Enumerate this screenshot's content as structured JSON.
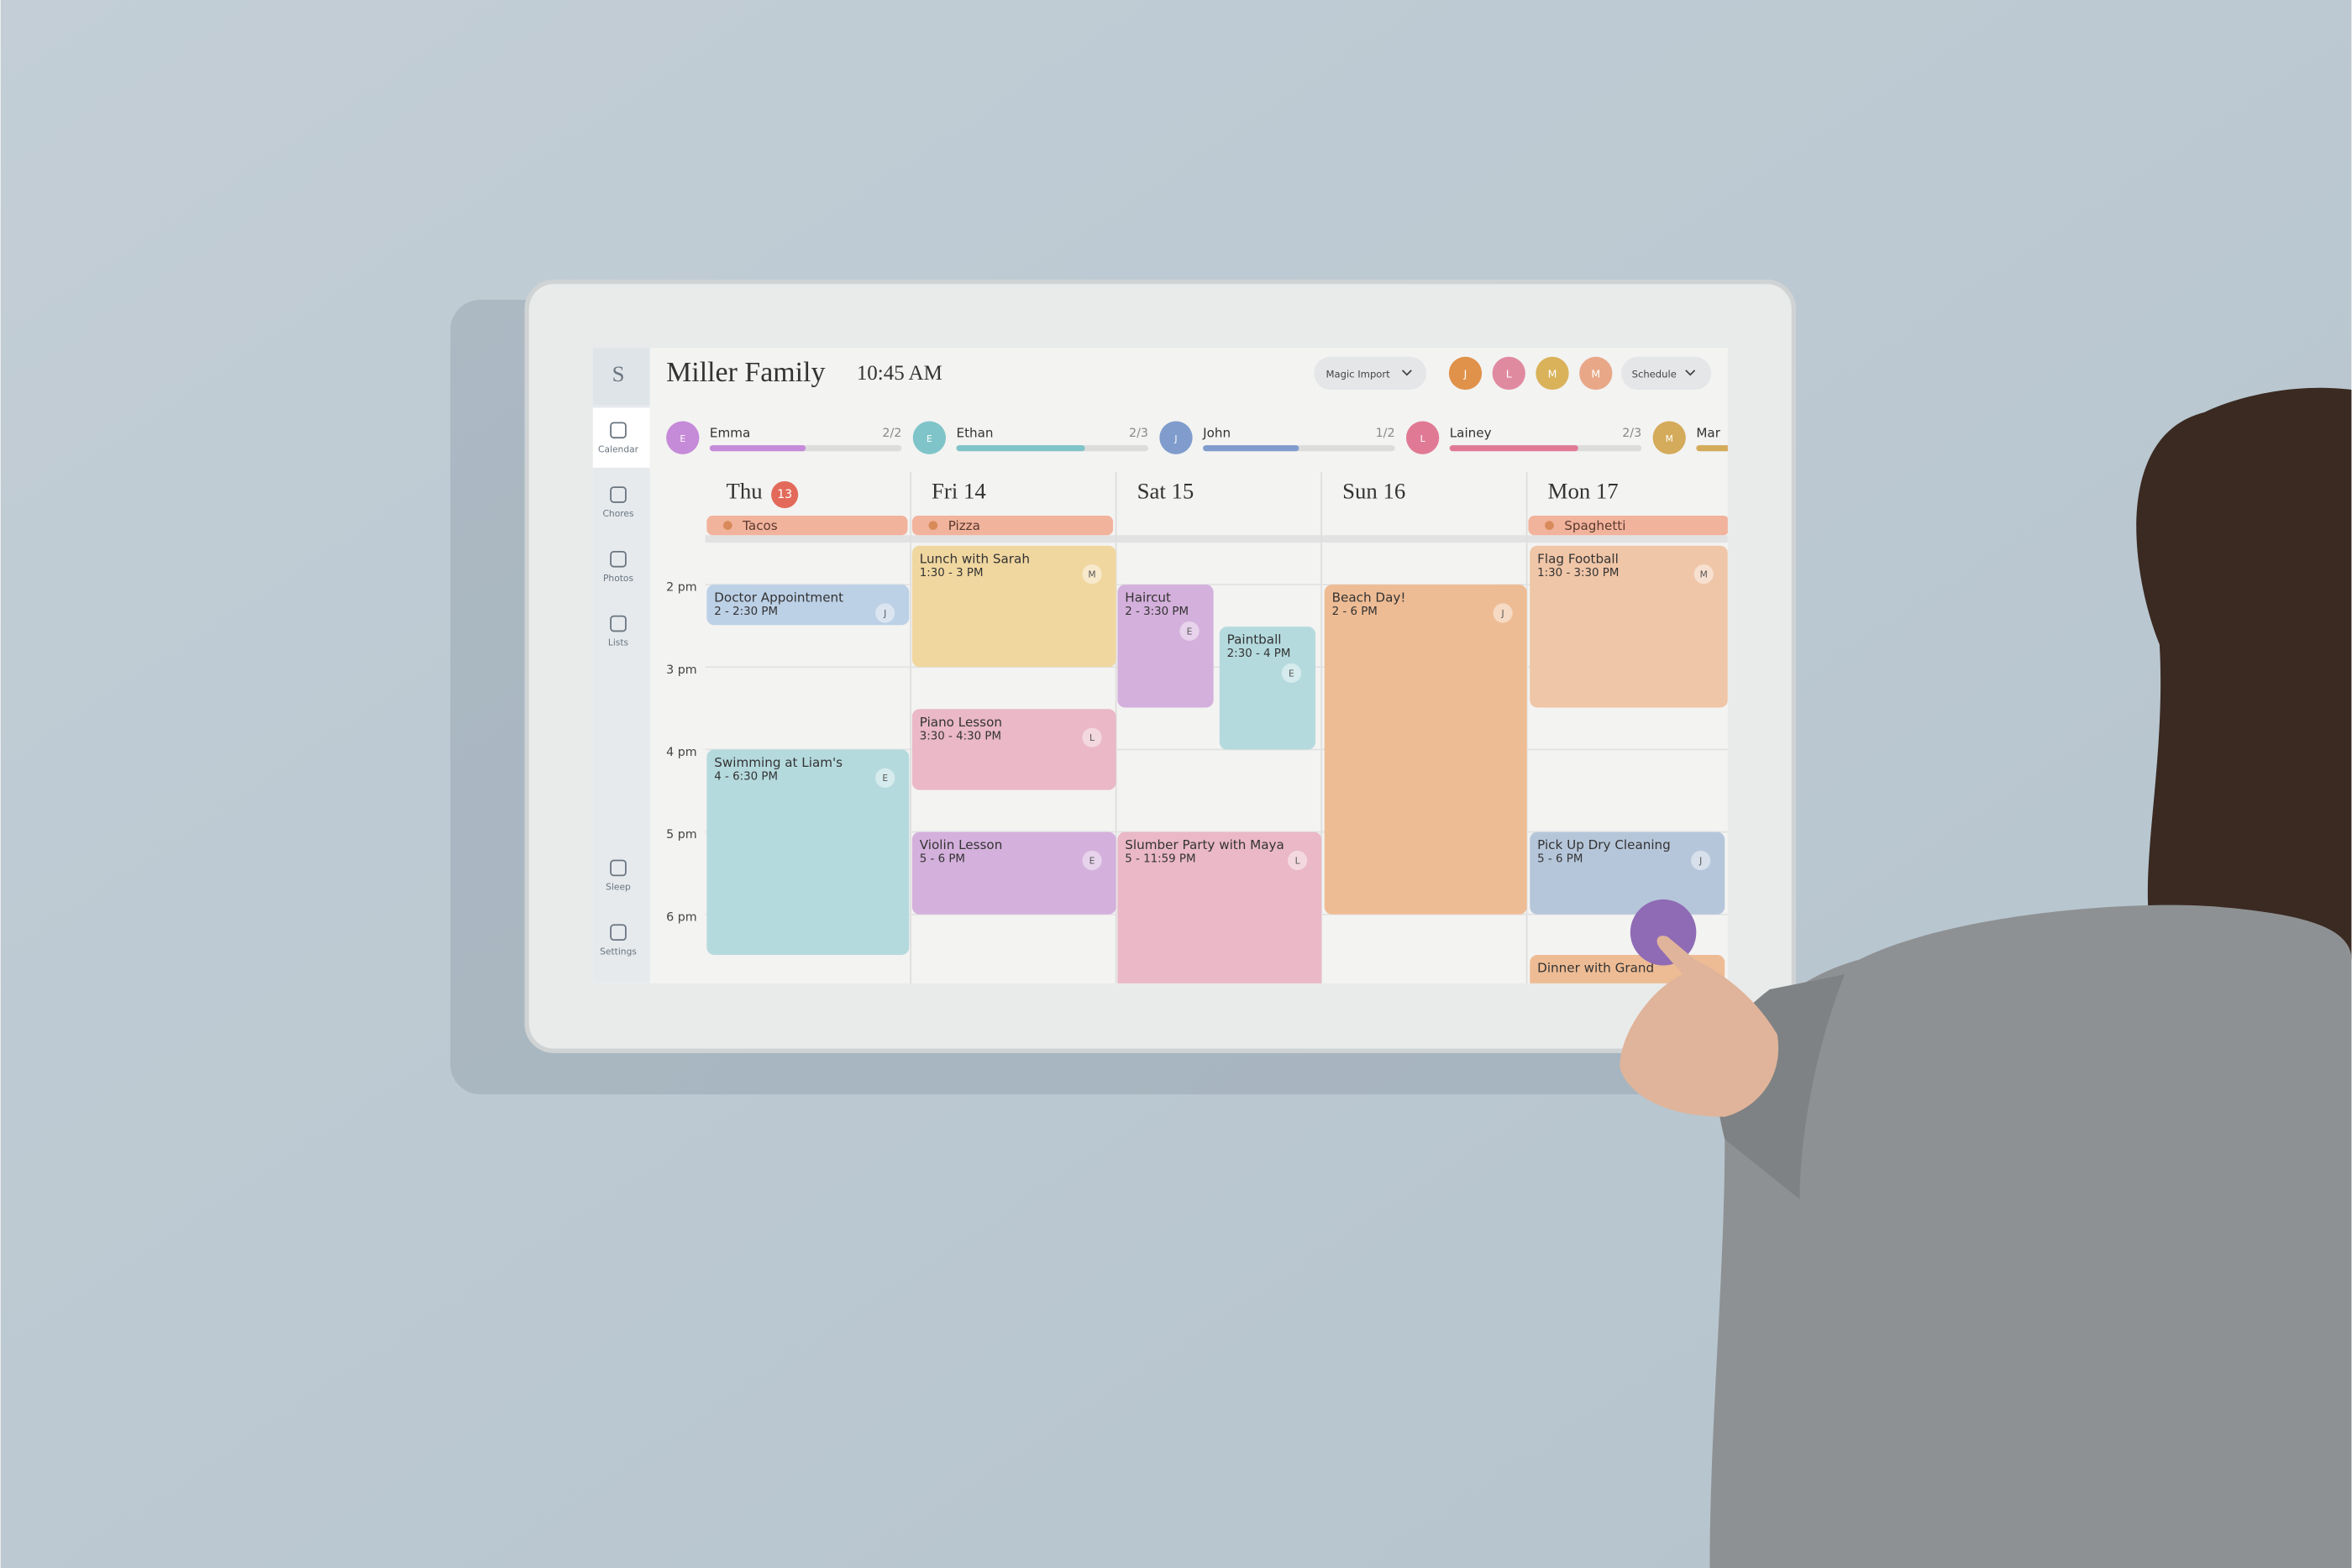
{
  "header": {
    "initial": "S",
    "title": "Miller Family",
    "time": "10:45 AM",
    "magic_import": "Magic Import",
    "avatars": [
      "J",
      "L",
      "M",
      "M"
    ],
    "schedule": "Schedule"
  },
  "sidebar": {
    "items": [
      "Calendar",
      "Chores",
      "Photos",
      "Lists"
    ],
    "bottom": [
      "Sleep",
      "Settings"
    ]
  },
  "members": [
    {
      "initial": "E",
      "name": "Emma",
      "progress": "2/2",
      "color": "#c58ad8"
    },
    {
      "initial": "E",
      "name": "Ethan",
      "progress": "2/3",
      "color": "#7fc4c8"
    },
    {
      "initial": "J",
      "name": "John",
      "progress": "1/2",
      "color": "#7f9ccc"
    },
    {
      "initial": "L",
      "name": "Lainey",
      "progress": "2/3",
      "color": "#e07a94"
    },
    {
      "initial": "M",
      "name": "Mar",
      "color": "#d4ab5a"
    }
  ],
  "days": [
    {
      "label": "Thu",
      "badge": "13"
    },
    {
      "label": "Fri 14"
    },
    {
      "label": "Sat 15"
    },
    {
      "label": "Sun 16"
    },
    {
      "label": "Mon 17"
    }
  ],
  "meals": [
    "Tacos",
    "Pizza",
    "Spaghetti"
  ],
  "times": [
    "2 pm",
    "3 pm",
    "4 pm",
    "5 pm",
    "6 pm"
  ],
  "events": [
    {
      "title": "Doctor Appointment",
      "time": "2 - 2:30 PM",
      "initial": "J",
      "color": "#bcd0e6"
    },
    {
      "title": "Swimming at Liam's",
      "time": "4 - 6:30 PM",
      "initial": "E",
      "color": "#b5dade"
    },
    {
      "title": "Lunch with Sarah",
      "time": "1:30 - 3 PM",
      "initial": "M",
      "color": "#f0d7a0"
    },
    {
      "title": "Piano Lesson",
      "time": "3:30 - 4:30 PM",
      "initial": "L",
      "color": "#eab8c6"
    },
    {
      "title": "Violin Lesson",
      "time": "5 - 6 PM",
      "initial": "E",
      "color": "#d4b0dc"
    },
    {
      "title": "Haircut",
      "time": "2 - 3:30 PM",
      "initial": "E",
      "color": "#d4b0dc"
    },
    {
      "title": "Paintball",
      "time": "2:30 - 4 PM",
      "initial": "E",
      "color": "#b5dade"
    },
    {
      "title": "Slumber Party with Maya",
      "time": "5 - 11:59 PM",
      "initial": "L",
      "color": "#eab8c6"
    },
    {
      "title": "Beach Day!",
      "time": "2 - 6 PM",
      "initial": "J",
      "color": "#eebc94"
    },
    {
      "title": "Flag Football",
      "time": "1:30 - 3:30 PM",
      "initial": "M",
      "color": "#f0c6a8"
    },
    {
      "title": "Pick Up Dry Cleaning",
      "time": "5 - 6 PM",
      "initial": "J",
      "color": "#b6c6da"
    },
    {
      "title": "Dinner with Grand",
      "color": "#eebc94"
    }
  ]
}
